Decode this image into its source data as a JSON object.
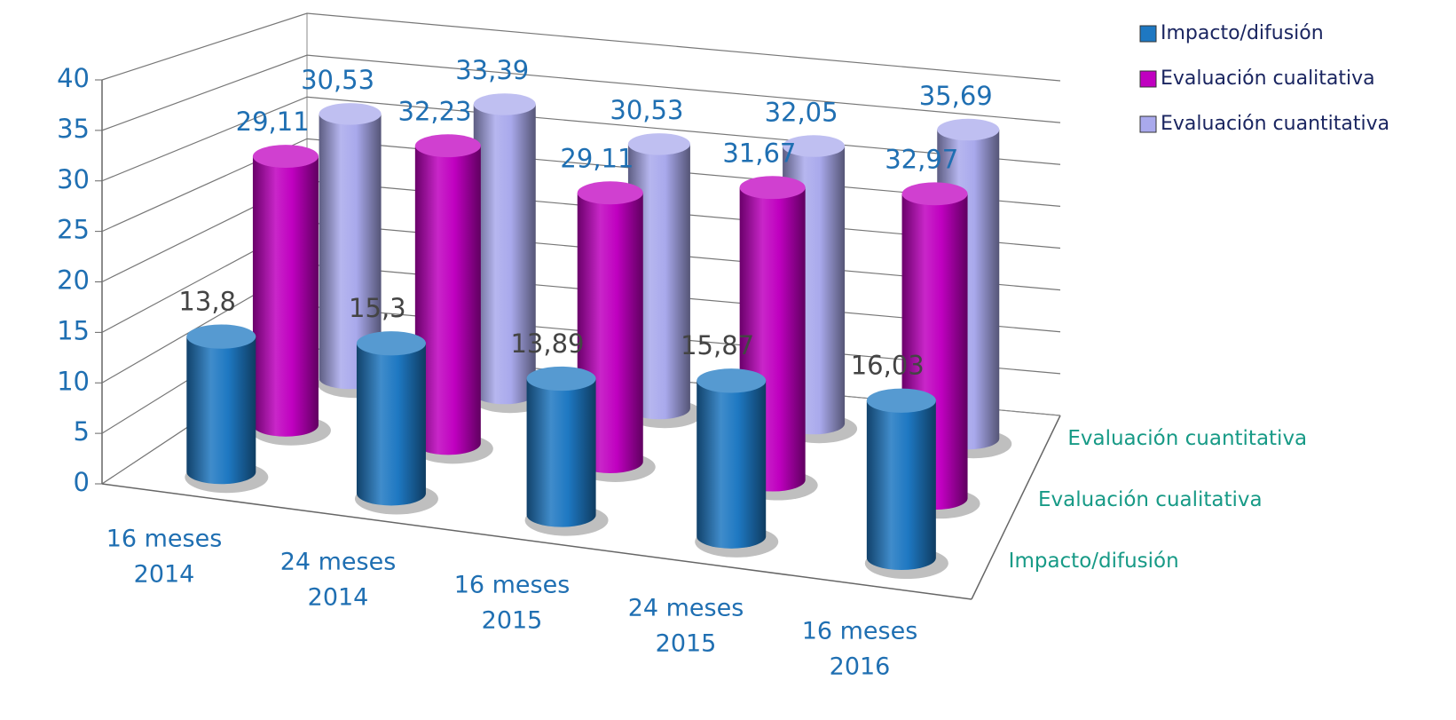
{
  "chart_data": {
    "type": "bar3d",
    "categories": [
      [
        "16 meses",
        "2014"
      ],
      [
        "24 meses",
        "2014"
      ],
      [
        "16 meses",
        "2015"
      ],
      [
        "24 meses",
        "2015"
      ],
      [
        "16 meses",
        "2016"
      ]
    ],
    "series": [
      {
        "name": "Impacto/difusión",
        "color": "#1e78c2",
        "values": [
          13.8,
          15.3,
          13.89,
          15.87,
          16.03
        ],
        "value_labels": [
          "13,8",
          "15,3",
          "13,89",
          "15,87",
          "16,03"
        ]
      },
      {
        "name": "Evaluación cualitativa",
        "color": "#c000c0",
        "values": [
          29.11,
          32.23,
          29.11,
          31.67,
          32.97
        ],
        "value_labels": [
          "29,11",
          "32,23",
          "29,11",
          "31,67",
          "32,97"
        ]
      },
      {
        "name": "Evaluación cuantitativa",
        "color": "#a9a9ec",
        "values": [
          30.53,
          33.39,
          30.53,
          32.05,
          35.69
        ],
        "value_labels": [
          "30,53",
          "33,39",
          "30,53",
          "32,05",
          "35,69"
        ]
      }
    ],
    "ylim": [
      0,
      40
    ],
    "yticks": [
      0,
      5,
      10,
      15,
      20,
      25,
      30,
      35,
      40
    ],
    "grid": true,
    "legend": "top-right"
  }
}
